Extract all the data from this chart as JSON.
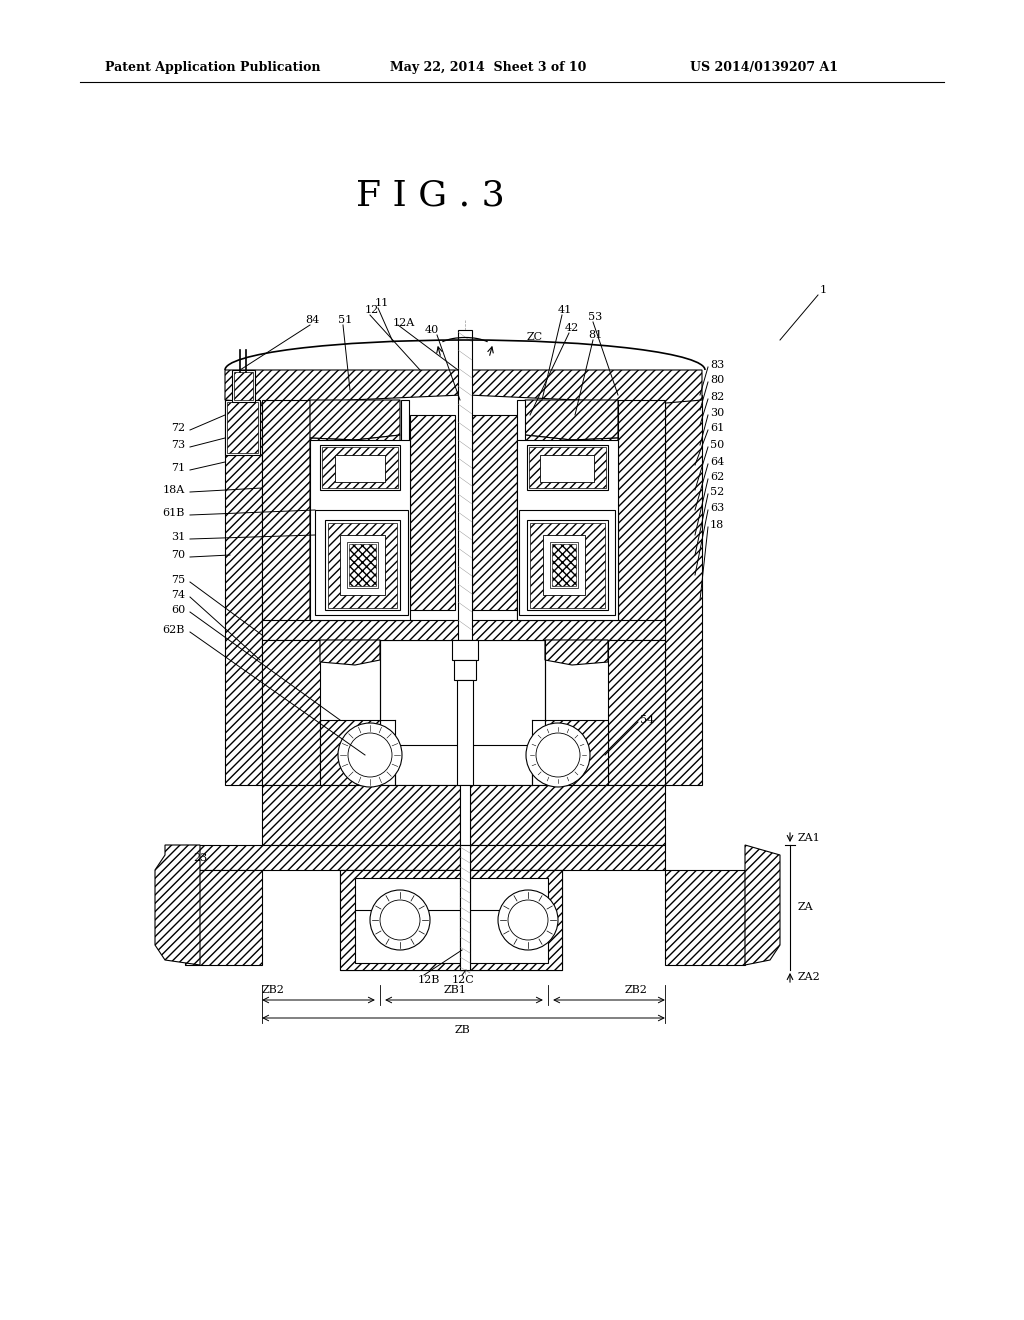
{
  "header_left": "Patent Application Publication",
  "header_mid": "May 22, 2014  Sheet 3 of 10",
  "header_right": "US 2014/0139207 A1",
  "figure_title": "F I G . 3",
  "bg_color": "#ffffff",
  "line_color": "#000000"
}
